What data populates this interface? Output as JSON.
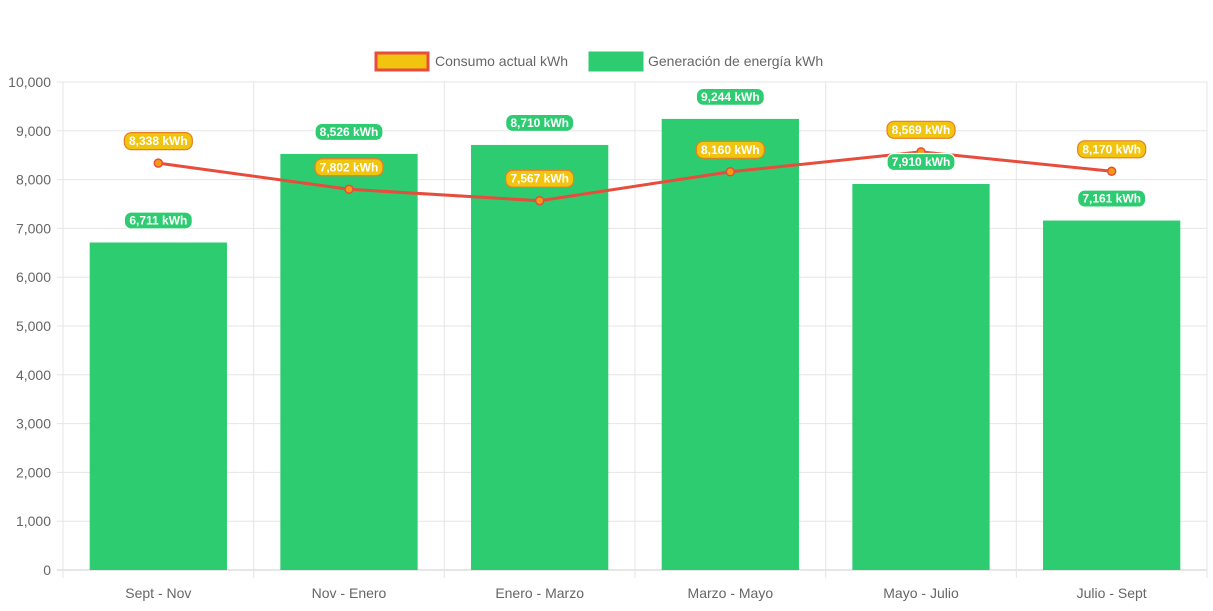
{
  "chart_data": {
    "type": "bar",
    "categories": [
      "Sept - Nov",
      "Nov - Enero",
      "Enero - Marzo",
      "Marzo - Mayo",
      "Mayo - Julio",
      "Julio - Sept"
    ],
    "series": [
      {
        "name": "Consumo actual kWh",
        "type": "line",
        "values": [
          8338,
          7802,
          7567,
          8160,
          8569,
          8170
        ],
        "data_labels": [
          "8,338 kWh",
          "7,802 kWh",
          "7,567 kWh",
          "8,160 kWh",
          "8,569 kWh",
          "8,170 kWh"
        ],
        "color": "#e74c3c",
        "label_color": "#f1c40f",
        "point_color": "#f39c12"
      },
      {
        "name": "Generación de energía kWh",
        "type": "bar",
        "values": [
          6711,
          8526,
          8710,
          9244,
          7910,
          7161
        ],
        "data_labels": [
          "6,711 kWh",
          "8,526 kWh",
          "8,710 kWh",
          "9,244 kWh",
          "7,910 kWh",
          "7,161 kWh"
        ],
        "color": "#2ecc71"
      }
    ],
    "y_ticks": [
      "0",
      "1,000",
      "2,000",
      "3,000",
      "4,000",
      "5,000",
      "6,000",
      "7,000",
      "8,000",
      "9,000",
      "10,000"
    ],
    "ylim": [
      0,
      10000
    ],
    "grid": true,
    "legend_position": "top-center"
  }
}
